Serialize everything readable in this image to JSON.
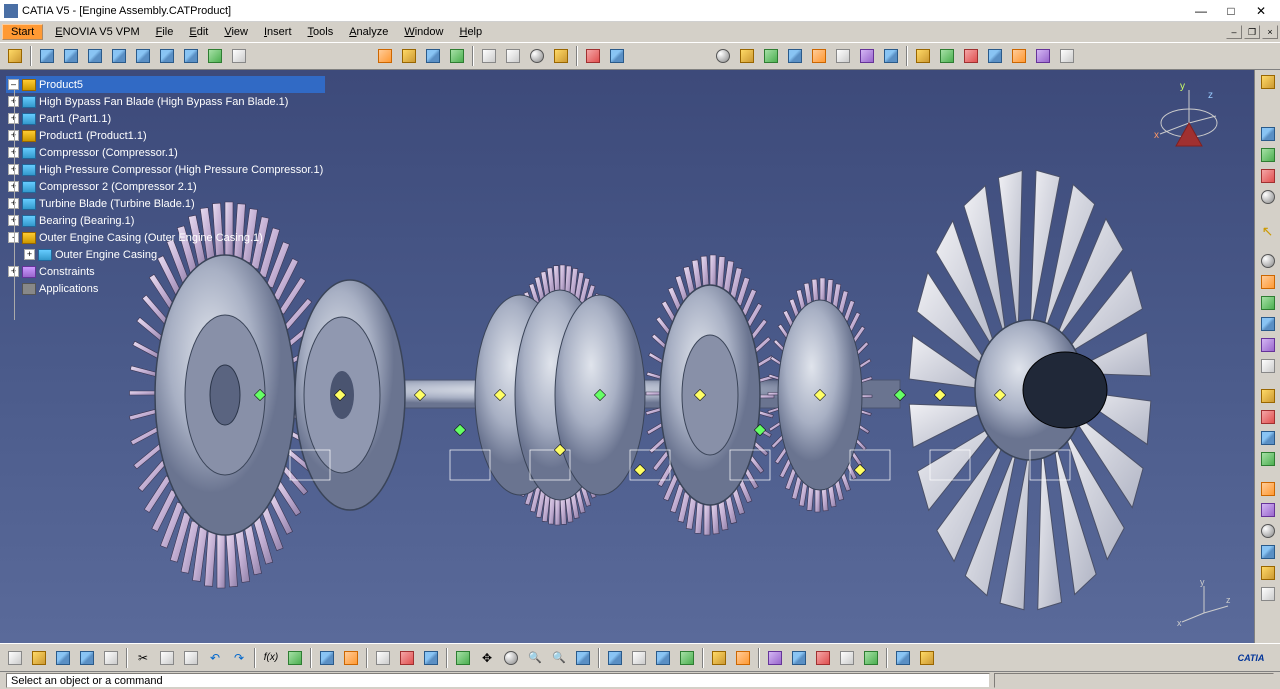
{
  "window": {
    "title": "CATIA V5 - [Engine Assembly.CATProduct]",
    "app_name": "CATIA V5",
    "document": "Engine Assembly.CATProduct"
  },
  "menu": {
    "start": "Start",
    "items": [
      "ENOVIA V5 VPM",
      "File",
      "Edit",
      "View",
      "Insert",
      "Tools",
      "Analyze",
      "Window",
      "Help"
    ]
  },
  "tree": {
    "root": "Product5",
    "items": [
      {
        "label": "High Bypass Fan Blade (High Bypass Fan Blade.1)",
        "type": "part",
        "exp": "+"
      },
      {
        "label": "Part1 (Part1.1)",
        "type": "part",
        "exp": "+"
      },
      {
        "label": "Product1 (Product1.1)",
        "type": "prod",
        "exp": "+"
      },
      {
        "label": "Compressor (Compressor.1)",
        "type": "part",
        "exp": "+"
      },
      {
        "label": "High Pressure Compressor (High Pressure Compressor.1)",
        "type": "part",
        "exp": "+"
      },
      {
        "label": "Compressor 2 (Compressor 2.1)",
        "type": "part",
        "exp": "+"
      },
      {
        "label": "Turbine Blade (Turbine Blade.1)",
        "type": "part",
        "exp": "+"
      },
      {
        "label": "Bearing (Bearing.1)",
        "type": "part",
        "exp": "+"
      },
      {
        "label": "Outer Engine Casing (Outer Engine Casing.1)",
        "type": "prod",
        "exp": "-"
      },
      {
        "label": "Outer Engine Casing",
        "type": "part",
        "exp": "+",
        "indent": 1
      },
      {
        "label": "Constraints",
        "type": "cons",
        "exp": "+"
      },
      {
        "label": "Applications",
        "type": "app",
        "exp": ""
      }
    ]
  },
  "status": {
    "prompt": "Select an object or a command"
  },
  "compass": {
    "axes": {
      "x": "x",
      "y": "y",
      "z": "z"
    }
  },
  "colors": {
    "viewport_top": "#3d4a7a",
    "viewport_bottom": "#5a6a9a",
    "chrome": "#d4d0c8",
    "start_btn": "#ff9933",
    "selection": "#316ac5",
    "blade_light": "#d8c8e0",
    "blade_dark": "#a890b8",
    "metal_light": "#c0c8d8",
    "metal_dark": "#707890",
    "constraint_yellow": "#ffff66",
    "constraint_green": "#66ff66"
  },
  "logo": "CATIA"
}
